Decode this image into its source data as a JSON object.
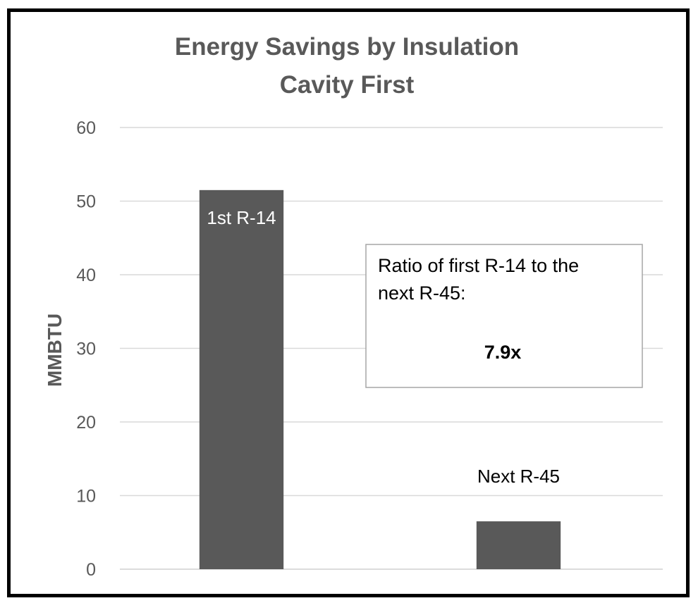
{
  "chart_data": {
    "type": "bar",
    "title": [
      "Energy Savings by Insulation",
      "Cavity First"
    ],
    "xlabel": "",
    "ylabel": "MMBTU",
    "ylim": [
      0,
      60
    ],
    "yticks": [
      0,
      10,
      20,
      30,
      40,
      50,
      60
    ],
    "grid": true,
    "categories": [
      "1st R-14",
      "Next R-45"
    ],
    "values": [
      51.5,
      6.5
    ],
    "data_labels": [
      "1st R-14",
      "Next R-45"
    ],
    "bar_color": "#595959",
    "annotation": {
      "lines": [
        "Ratio of first R-14 to the",
        "next R-45:"
      ],
      "value": "7.9x"
    }
  }
}
